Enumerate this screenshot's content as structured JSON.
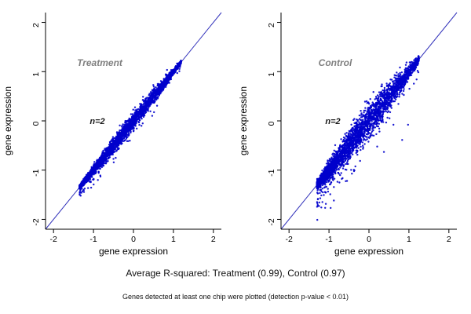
{
  "figure": {
    "caption_primary": "Average R-squared: Treatment (0.99), Control (0.97)",
    "caption_secondary": "Genes detected at least one chip were plotted (detection p-value < 0.01)",
    "background_color": "#ffffff"
  },
  "chart_data": [
    {
      "type": "scatter",
      "title": "Treatment",
      "annotation": "n=2",
      "xlabel": "gene expression",
      "ylabel": "gene expression",
      "xlim": [
        -2.2,
        2.2
      ],
      "ylim": [
        -2.2,
        2.2
      ],
      "ticks": [
        -2,
        -1,
        0,
        1,
        2
      ],
      "identity_line": true,
      "r_squared": 0.99,
      "point_color": "#0000cc",
      "line_color": "#3333bb",
      "title_color": "#808080",
      "grid": false,
      "cloud": {
        "n": 3200,
        "x_min": -1.35,
        "x_max": 1.2,
        "density_skew": 1.6,
        "noise_sd": 0.05,
        "outlier_frac": 0.03,
        "outlier_sd": 0.12,
        "seed": 42
      }
    },
    {
      "type": "scatter",
      "title": "Control",
      "annotation": "n=2",
      "xlabel": "gene expression",
      "ylabel": "gene expression",
      "xlim": [
        -2.2,
        2.2
      ],
      "ylim": [
        -2.2,
        2.2
      ],
      "ticks": [
        -2,
        -1,
        0,
        1,
        2
      ],
      "identity_line": true,
      "r_squared": 0.97,
      "point_color": "#0000cc",
      "line_color": "#3333bb",
      "title_color": "#808080",
      "grid": false,
      "cloud": {
        "n": 3200,
        "x_min": -1.3,
        "x_max": 1.25,
        "density_skew": 1.6,
        "noise_sd": 0.1,
        "outlier_frac": 0.06,
        "outlier_sd": 0.28,
        "seed": 97
      }
    }
  ]
}
